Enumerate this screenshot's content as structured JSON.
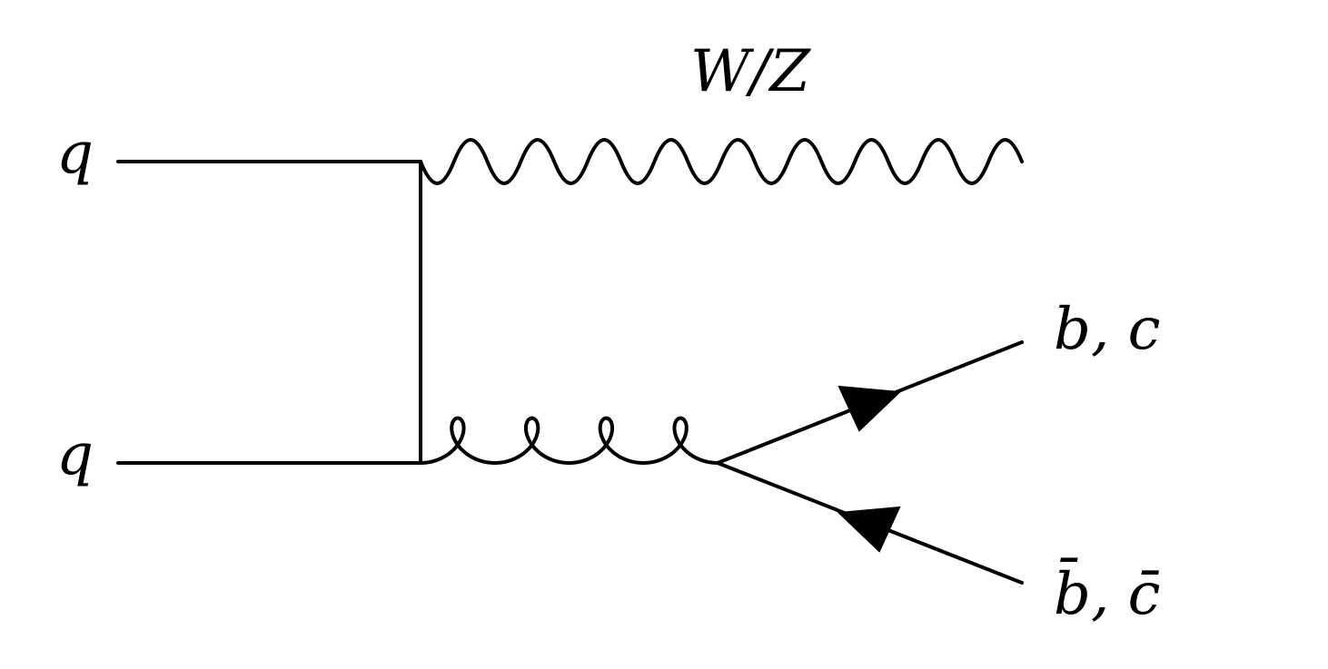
{
  "diagram": {
    "labels": {
      "incoming_top": "q",
      "incoming_bottom": "q",
      "boson": "W/Z",
      "outgoing_quark": "b, c",
      "outgoing_antiquark": "b̄, c̄"
    }
  }
}
